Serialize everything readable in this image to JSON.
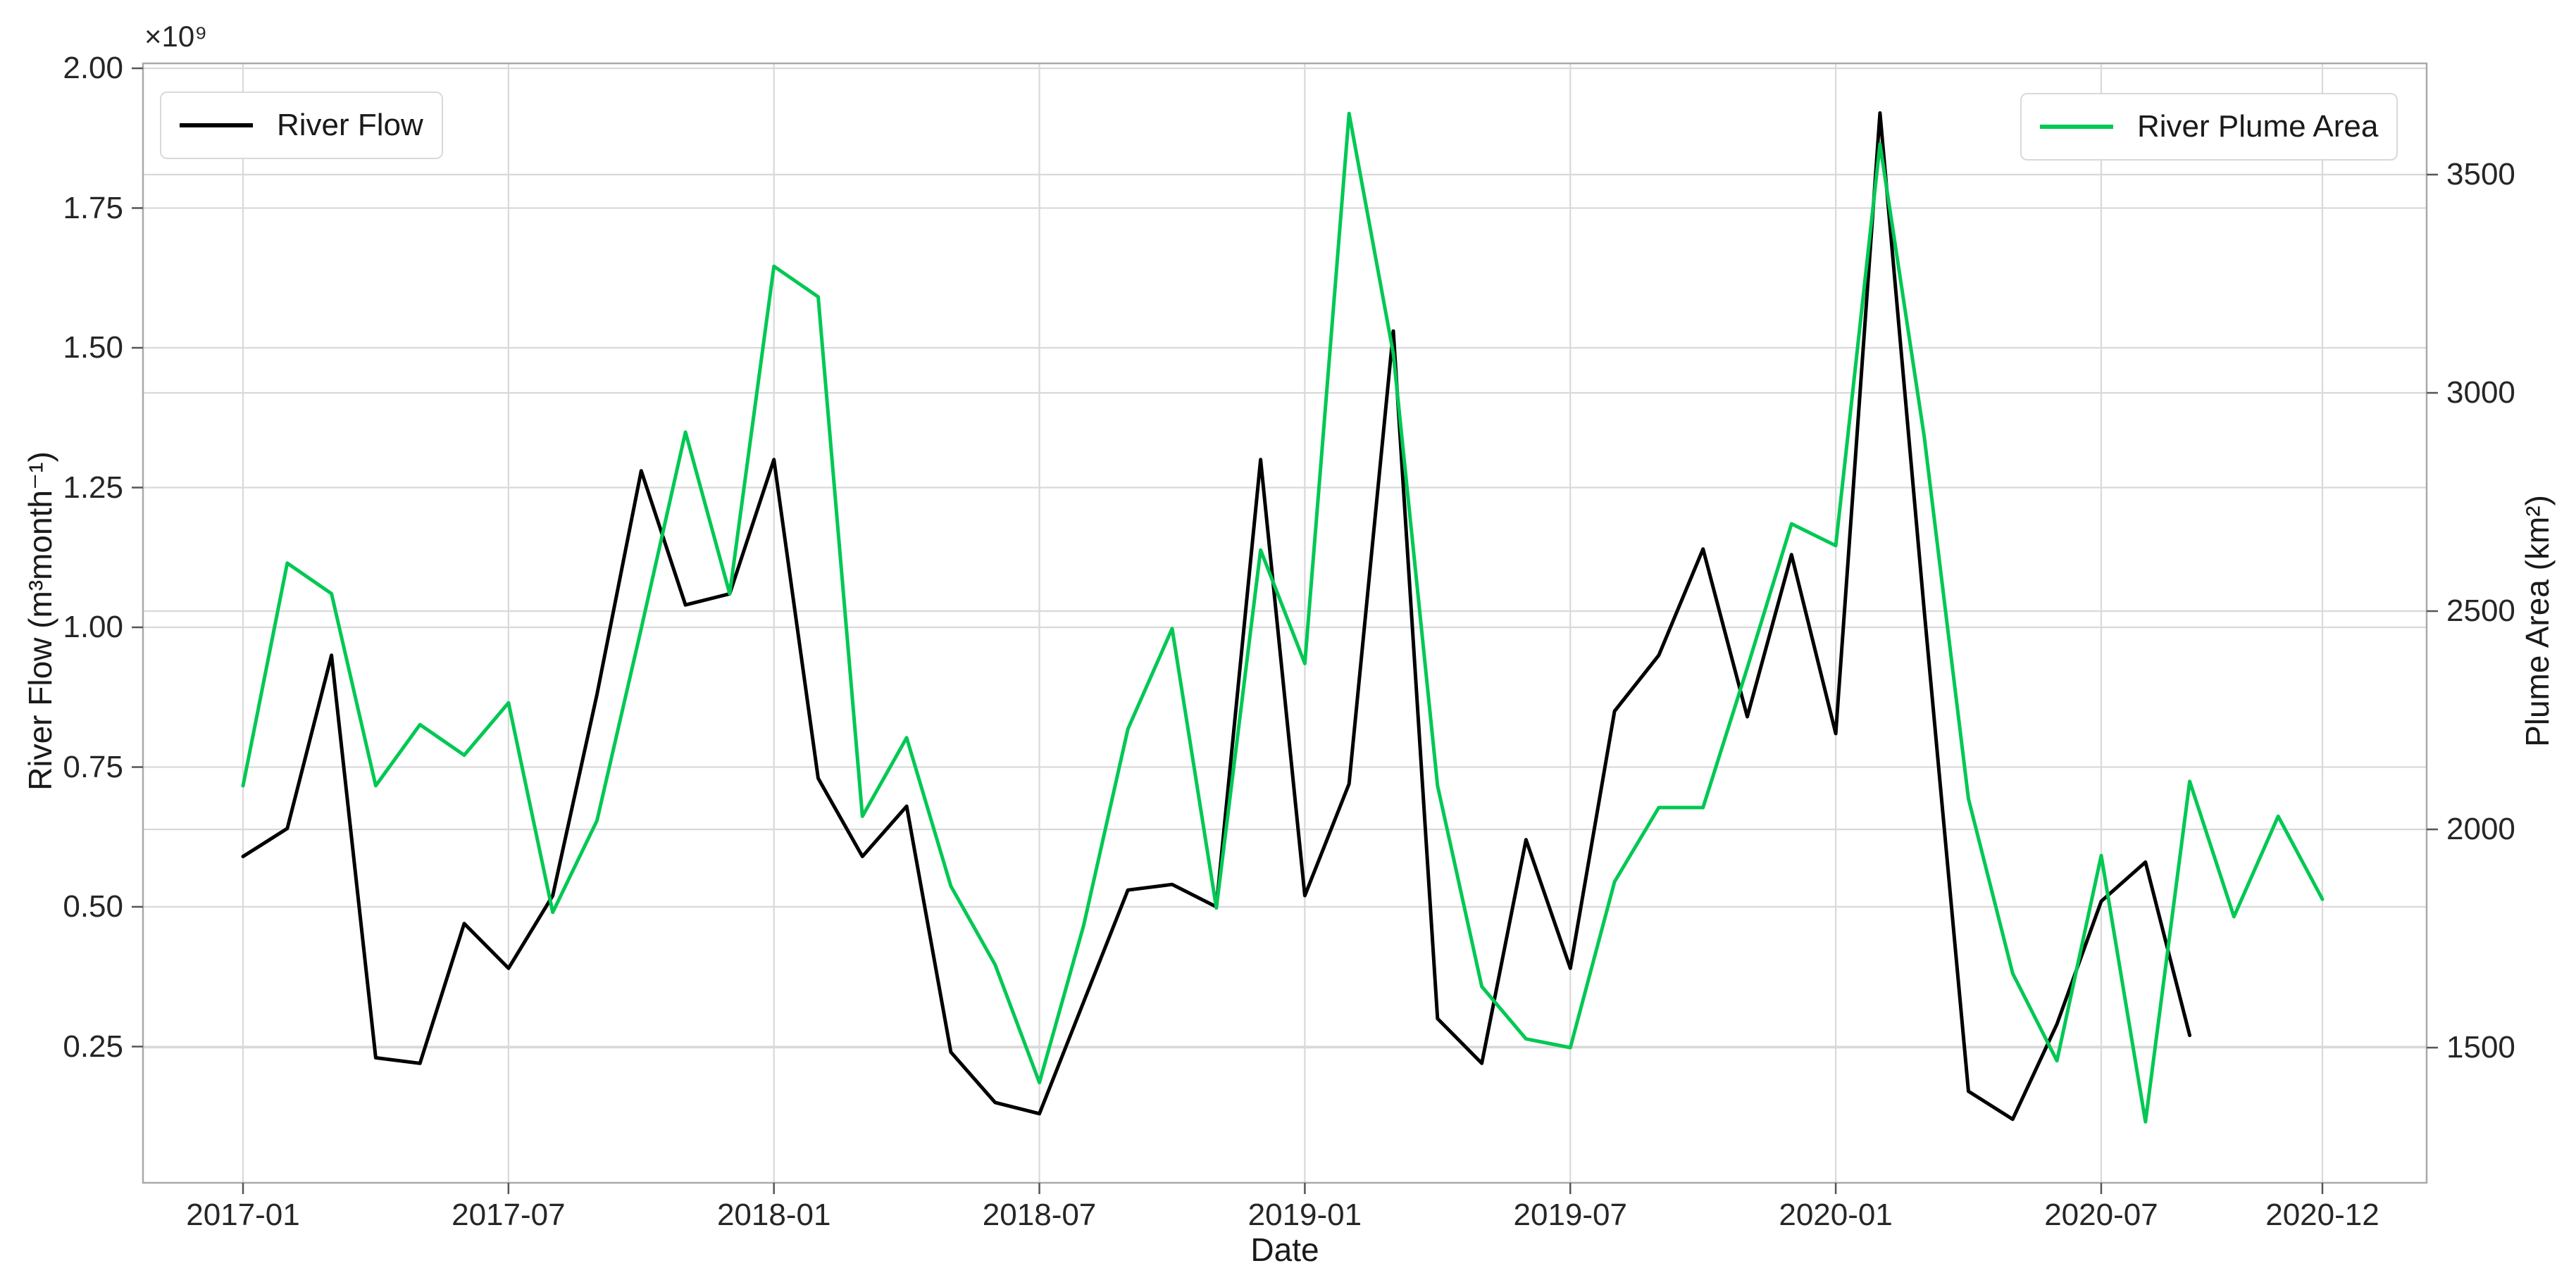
{
  "figure": {
    "offset_text": "×10⁹",
    "xlabel": "Date",
    "ylabel_left": "River Flow (m³month⁻¹)",
    "ylabel_right": "Plume Area (km²)",
    "legend_flow_label": "River Flow",
    "legend_plume_label": "River Plume Area"
  },
  "colors": {
    "river_flow": "#000000",
    "river_plume_area": "#00c853",
    "grid": "#d9d9d9",
    "spine": "#a9a9a9",
    "tick_mark": "#555555"
  },
  "chart_data": {
    "type": "line",
    "x": [
      "2017-01",
      "2017-02",
      "2017-03",
      "2017-04",
      "2017-05",
      "2017-06",
      "2017-07",
      "2017-08",
      "2017-09",
      "2017-10",
      "2017-11",
      "2017-12",
      "2018-01",
      "2018-02",
      "2018-03",
      "2018-04",
      "2018-05",
      "2018-06",
      "2018-07",
      "2018-08",
      "2018-09",
      "2018-10",
      "2018-11",
      "2018-12",
      "2019-01",
      "2019-02",
      "2019-03",
      "2019-04",
      "2019-05",
      "2019-06",
      "2019-07",
      "2019-08",
      "2019-09",
      "2019-10",
      "2019-11",
      "2019-12",
      "2020-01",
      "2020-02",
      "2020-03",
      "2020-04",
      "2020-05",
      "2020-06",
      "2020-07",
      "2020-08",
      "2020-09",
      "2020-10",
      "2020-11",
      "2020-12"
    ],
    "x_tick_labels": [
      "2017-01",
      "2017-07",
      "2018-01",
      "2018-07",
      "2019-01",
      "2019-07",
      "2020-01",
      "2020-07",
      "2020-12"
    ],
    "x_tick_month_index": [
      0,
      6,
      12,
      18,
      24,
      30,
      36,
      42,
      47
    ],
    "xlabel": "Date",
    "left_axis": {
      "label": "River Flow (m³month⁻¹)",
      "offset_text": "×10⁹",
      "ticks": [
        2.0,
        1.75,
        1.5,
        1.25,
        1.0,
        0.75,
        0.5,
        0.25
      ],
      "tick_labels": [
        "2.00",
        "1.75",
        "1.50",
        "1.25",
        "1.00",
        "0.75",
        "0.50",
        "0.25"
      ],
      "range_shown": [
        0.0,
        2.0
      ]
    },
    "right_axis": {
      "label": "Plume Area (km²)",
      "ticks": [
        3500,
        3000,
        2500,
        2000,
        1500
      ],
      "tick_labels": [
        "3500",
        "3000",
        "2500",
        "2000",
        "1500"
      ],
      "range_shown": [
        1190,
        3755
      ]
    },
    "grid": true,
    "legend_positions": [
      "upper left",
      "upper right"
    ],
    "series": [
      {
        "name": "River Flow",
        "axis": "left",
        "color": "#000000",
        "units": "m³ month⁻¹ (values ×10⁹)",
        "values": [
          0.59,
          0.64,
          0.95,
          0.23,
          0.22,
          0.47,
          0.39,
          0.52,
          0.88,
          1.28,
          1.04,
          1.06,
          1.3,
          0.73,
          0.59,
          0.68,
          0.24,
          0.15,
          0.13,
          0.33,
          0.53,
          0.54,
          0.5,
          1.3,
          0.52,
          0.72,
          1.53,
          0.3,
          0.22,
          0.62,
          0.39,
          0.85,
          0.95,
          1.14,
          0.84,
          1.13,
          0.81,
          1.92,
          1.03,
          0.17,
          0.12,
          0.29,
          0.51,
          0.58,
          0.27,
          null,
          null,
          null
        ]
      },
      {
        "name": "River Plume Area",
        "axis": "right",
        "color": "#00c853",
        "units": "km²",
        "values": [
          2100,
          2610,
          2540,
          2100,
          2240,
          2170,
          2290,
          1810,
          2020,
          2460,
          2910,
          2540,
          3290,
          3220,
          2030,
          2210,
          1870,
          1690,
          1420,
          1780,
          2230,
          2460,
          1820,
          2640,
          2380,
          3640,
          3090,
          2100,
          1640,
          1520,
          1500,
          1880,
          2050,
          2050,
          2370,
          2700,
          2650,
          3570,
          2900,
          2070,
          1670,
          1470,
          1940,
          1330,
          2110,
          1800,
          2030,
          1840
        ]
      }
    ]
  }
}
